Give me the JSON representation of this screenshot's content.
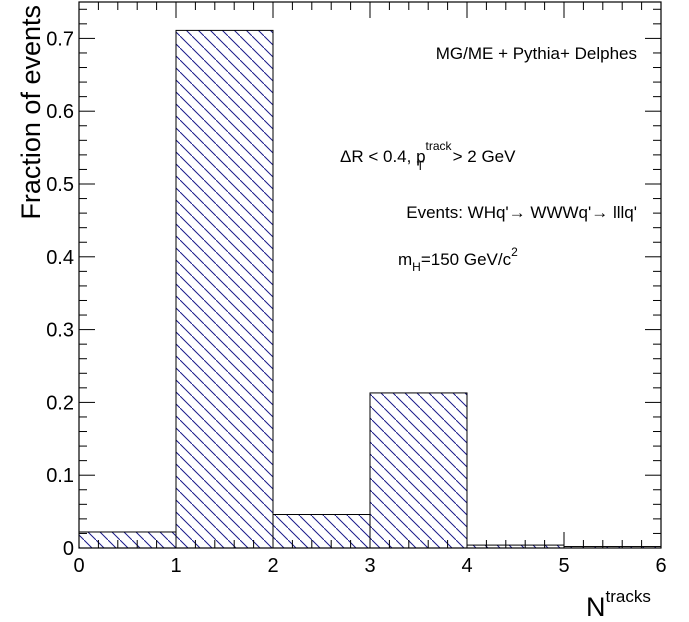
{
  "chart_data": {
    "type": "bar",
    "style": "histogram-hatched",
    "bin_edges": [
      0,
      1,
      2,
      3,
      4,
      5,
      6
    ],
    "values": [
      0.022,
      0.711,
      0.046,
      0.213,
      0.004,
      0.002
    ],
    "xlabel_main": "N",
    "xlabel_sup": "tracks",
    "ylabel": "Fraction of events",
    "xlim": [
      0,
      6
    ],
    "ylim": [
      0,
      0.75
    ],
    "x_ticks": [
      "0",
      "1",
      "2",
      "3",
      "4",
      "5",
      "6"
    ],
    "y_ticks": [
      "0",
      "0.1",
      "0.2",
      "0.3",
      "0.4",
      "0.5",
      "0.6",
      "0.7"
    ],
    "annotations": {
      "generator": "MG/ME + Pythia+ Delphes",
      "cut_part1": "ΔR < 0.4, p",
      "cut_sub": "T",
      "cut_sup": "track",
      "cut_part2": " > 2 GeV",
      "events": "Events: WHq'→ WWWq'→ lllq'",
      "mass_part1": "m",
      "mass_sub": "H",
      "mass_part2": "=150 GeV/c",
      "mass_sup": "2"
    },
    "colors": {
      "hatch": "#1a1a8a",
      "outline": "#000000"
    },
    "grid": false,
    "legend": "none"
  }
}
